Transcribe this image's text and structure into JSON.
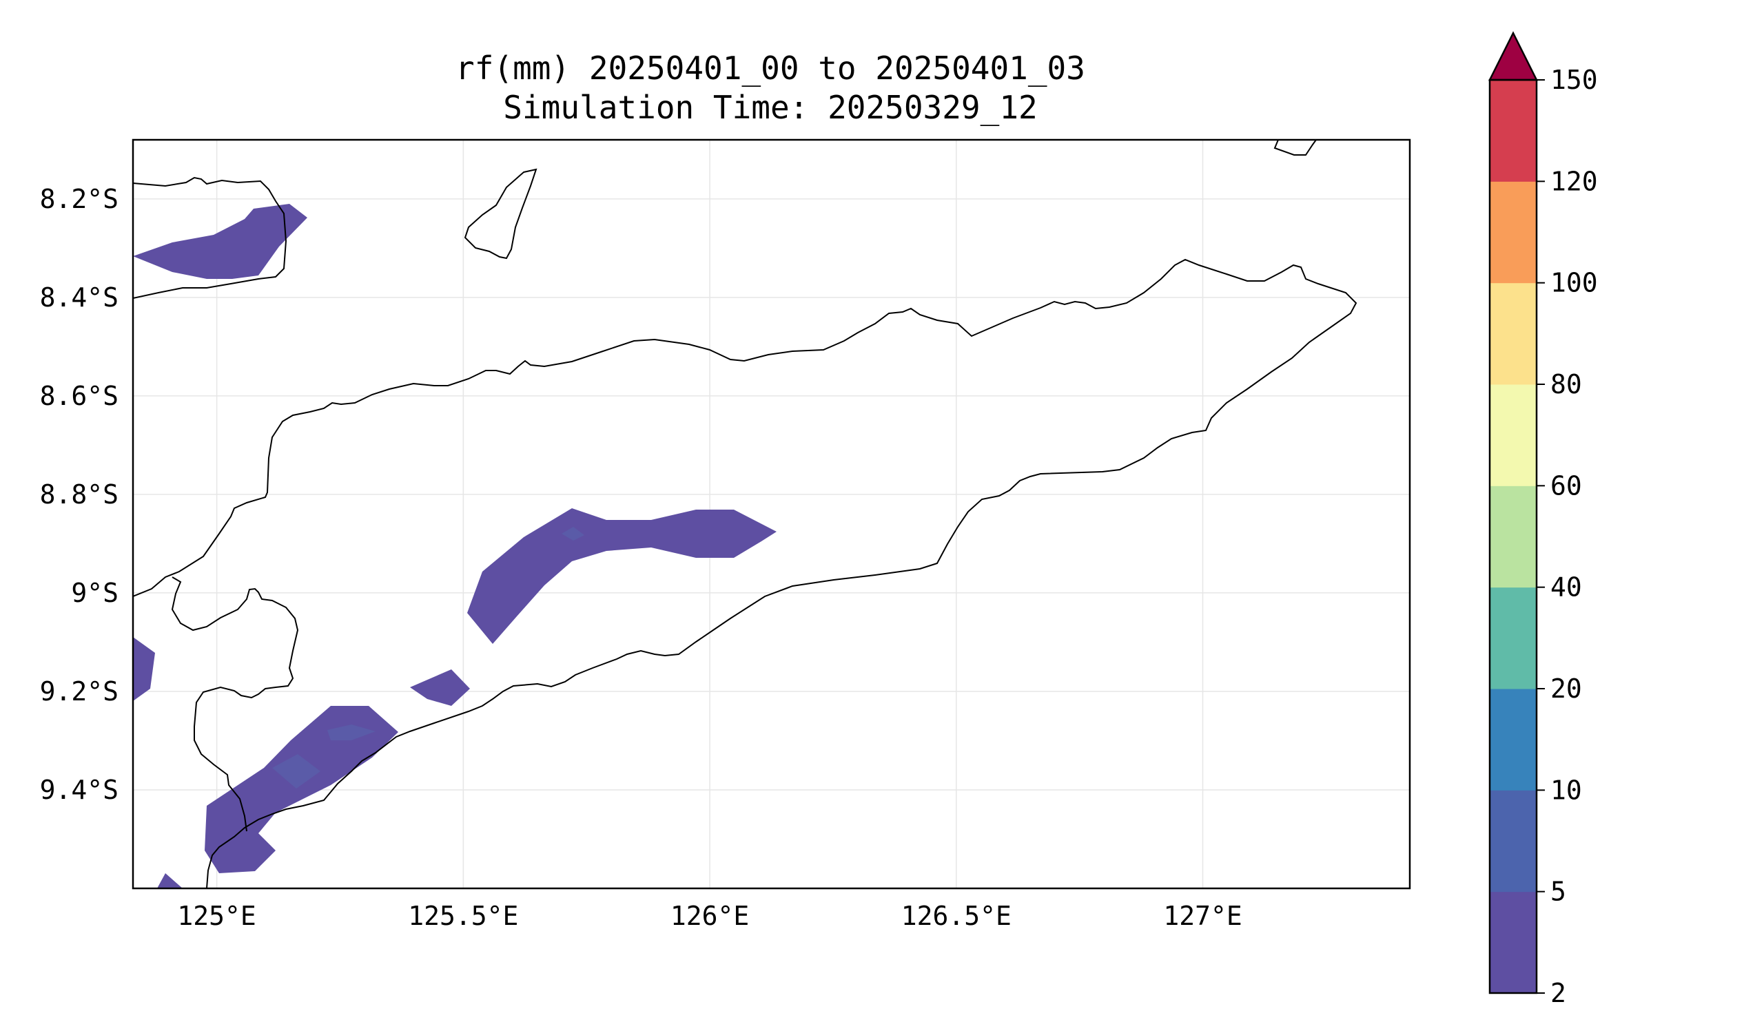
{
  "title_line1": "rf(mm) 20250401_00 to 20250401_03",
  "title_line2": "Simulation Time: 20250329_12",
  "map": {
    "lon_range": [
      124.83,
      127.42
    ],
    "lat_range": [
      -9.6,
      -8.08
    ],
    "x_ticks": [
      "125°E",
      "125.5°E",
      "126°E",
      "126.5°E",
      "127°E"
    ],
    "y_ticks": [
      "8.2°S",
      "8.4°S",
      "8.6°S",
      "8.8°S",
      "9°S",
      "9.2°S",
      "9.4°S"
    ],
    "gridlines": true,
    "coastline_color": "#000000"
  },
  "colorbar": {
    "levels": [
      "2",
      "5",
      "10",
      "20",
      "40",
      "60",
      "80",
      "100",
      "120",
      "150"
    ],
    "colors": [
      "#5e4fa2",
      "#4c64ad",
      "#3783bb",
      "#60bba8",
      "#bae3a0",
      "#f3f9af",
      "#fce18c",
      "#f99d59",
      "#d53e4f"
    ],
    "extend_color": "#9e0142",
    "extend": "max"
  },
  "rain_areas": [
    {
      "name": "rain-area-north-strait",
      "level": "2-5"
    },
    {
      "name": "rain-area-central-band",
      "level": "2-5"
    },
    {
      "name": "rain-area-south-coast",
      "level": "2-5"
    },
    {
      "name": "rain-area-west-edge",
      "level": "2-5"
    },
    {
      "name": "rain-area-small-cell",
      "level": "2-5"
    },
    {
      "name": "rain-area-southwest-tip",
      "level": "2-5"
    }
  ]
}
